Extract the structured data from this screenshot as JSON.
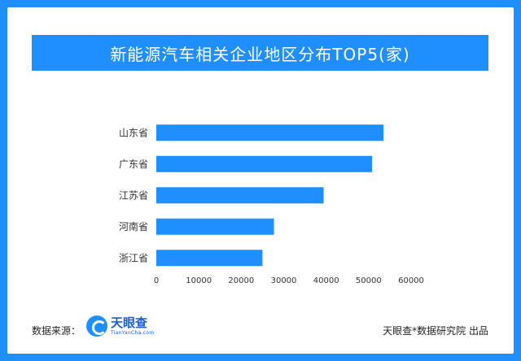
{
  "colors": {
    "accent": "#1f8fff",
    "bar": "#1f8fff"
  },
  "chart_data": {
    "type": "bar",
    "orientation": "horizontal",
    "title": "新能源汽车相关企业地区分布TOP5(家)",
    "categories": [
      "山东省",
      "广东省",
      "江苏省",
      "河南省",
      "浙江省"
    ],
    "values": [
      53500,
      50800,
      39400,
      27700,
      25000
    ],
    "xlim": [
      0,
      60000
    ],
    "xticks": [
      "0",
      "10000",
      "20000",
      "30000",
      "40000",
      "50000",
      "60000"
    ],
    "grid": false
  },
  "footer": {
    "source_label": "数据来源：",
    "logo_cn": "天眼查",
    "logo_en": "TianYanCha.com",
    "credit": "天眼查*数据研究院 出品"
  }
}
